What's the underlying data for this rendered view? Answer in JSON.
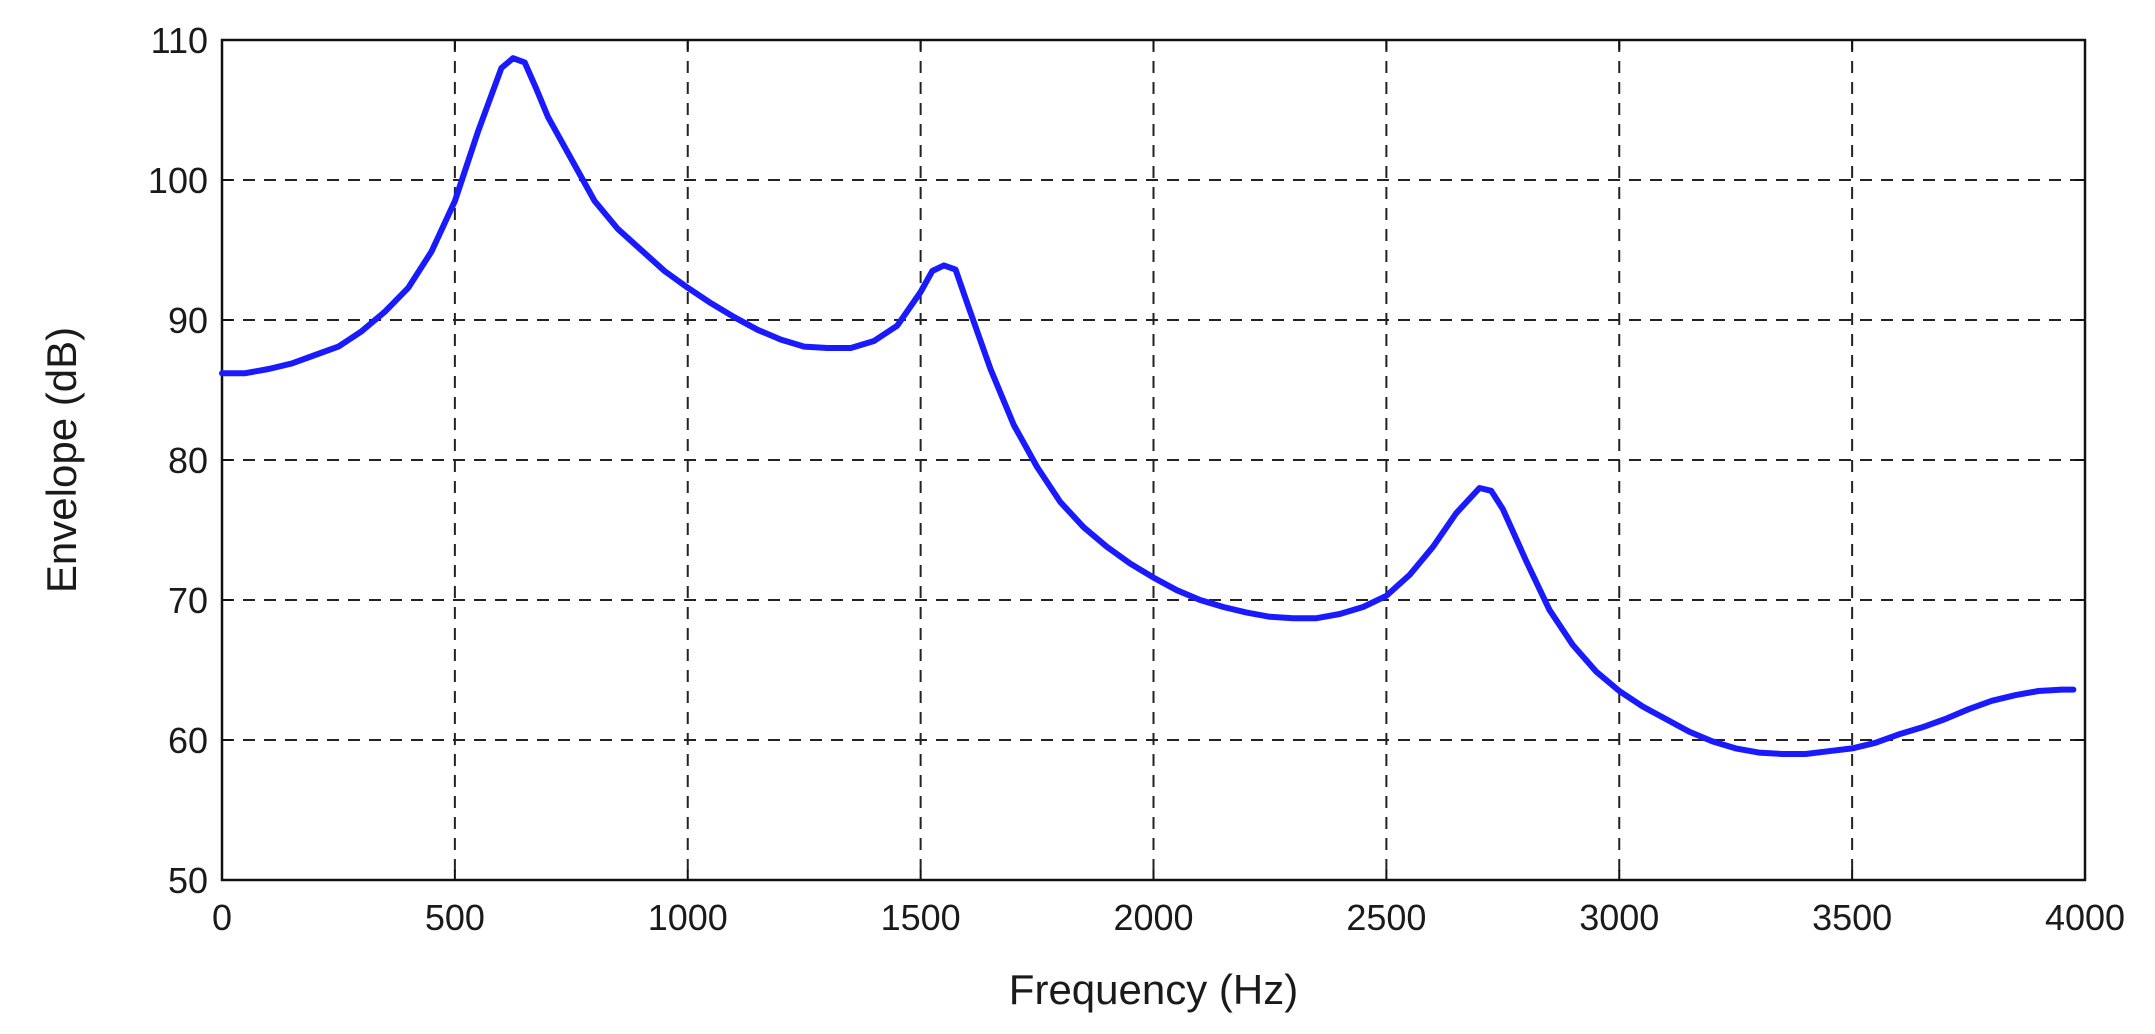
{
  "chart_data": {
    "type": "line",
    "title": "",
    "xlabel": "Frequency (Hz)",
    "ylabel": "Envelope (dB)",
    "xlim": [
      0,
      4000
    ],
    "ylim": [
      50,
      110
    ],
    "xticks": [
      0,
      500,
      1000,
      1500,
      2000,
      2500,
      3000,
      3500,
      4000
    ],
    "yticks": [
      50,
      60,
      70,
      80,
      90,
      100,
      110
    ],
    "xtick_labels": [
      "0",
      "500",
      "1000",
      "1500",
      "2000",
      "2500",
      "3000",
      "3500",
      "4000"
    ],
    "ytick_labels": [
      "50",
      "60",
      "70",
      "80",
      "90",
      "100",
      "110"
    ],
    "grid": true,
    "line_color": "#1a1aff",
    "series": [
      {
        "x": [
          0,
          50,
          100,
          150,
          200,
          250,
          300,
          350,
          400,
          450,
          500,
          550,
          600,
          625,
          650,
          675,
          700,
          750,
          800,
          850,
          900,
          950,
          1000,
          1050,
          1100,
          1150,
          1200,
          1250,
          1300,
          1350,
          1400,
          1450,
          1500,
          1525,
          1550,
          1575,
          1600,
          1650,
          1700,
          1750,
          1800,
          1850,
          1900,
          1950,
          2000,
          2050,
          2100,
          2150,
          2200,
          2250,
          2300,
          2350,
          2400,
          2450,
          2500,
          2550,
          2600,
          2650,
          2700,
          2725,
          2750,
          2800,
          2850,
          2900,
          2950,
          3000,
          3050,
          3100,
          3150,
          3200,
          3250,
          3300,
          3350,
          3400,
          3450,
          3500,
          3550,
          3600,
          3650,
          3700,
          3750,
          3800,
          3850,
          3900,
          3950,
          3975
        ],
        "y": [
          86.2,
          86.2,
          86.5,
          86.9,
          87.5,
          88.1,
          89.2,
          90.6,
          92.3,
          94.9,
          98.5,
          103.5,
          108,
          108.7,
          108.4,
          106.5,
          104.5,
          101.5,
          98.5,
          96.5,
          95,
          93.5,
          92.3,
          91.2,
          90.2,
          89.3,
          88.6,
          88.1,
          88,
          88,
          88.5,
          89.6,
          92,
          93.5,
          93.9,
          93.6,
          91.2,
          86.5,
          82.5,
          79.5,
          77,
          75.2,
          73.8,
          72.6,
          71.6,
          70.7,
          70,
          69.5,
          69.1,
          68.8,
          68.7,
          68.7,
          69,
          69.5,
          70.3,
          71.8,
          73.8,
          76.2,
          78,
          77.8,
          76.5,
          72.8,
          69.3,
          66.8,
          64.9,
          63.5,
          62.4,
          61.5,
          60.6,
          59.9,
          59.4,
          59.1,
          59,
          59,
          59.2,
          59.4,
          59.8,
          60.4,
          60.9,
          61.5,
          62.2,
          62.8,
          63.2,
          63.5,
          63.6,
          63.6
        ]
      }
    ]
  }
}
